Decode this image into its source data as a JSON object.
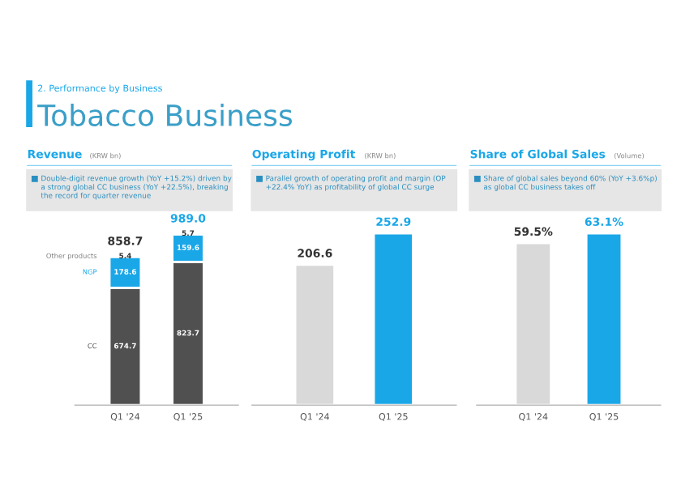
{
  "chart_data": [
    {
      "type": "other",
      "title": "Tobacco Business",
      "subtitle": "2. Performance by Business"
    },
    {
      "type": "bar",
      "title": "Revenue",
      "subtitle": "(KRW bn)",
      "stacked": true,
      "legend": "left",
      "tick_labels": "x",
      "annotations": [
        "Double-digit revenue growth (YoY +15.2%) driven by a strong global CC business (YoY +22.5%), breaking the record for quarter revenue"
      ],
      "categories": [
        "Q1 '24",
        "Q1 '25"
      ],
      "series": [
        {
          "name": "CC",
          "color": "#505050",
          "values": [
            674.7,
            823.7
          ],
          "value_labels": [
            "674.7",
            "823.7"
          ]
        },
        {
          "name": "NGP",
          "color": "#1aa7e8",
          "values": [
            178.6,
            159.6
          ],
          "value_labels": [
            "178.6",
            "159.6"
          ]
        },
        {
          "name": "Other products",
          "color": "#7f7f7f",
          "values": [
            5.4,
            5.7
          ],
          "value_labels": [
            "5.4",
            "5.7"
          ]
        }
      ],
      "totals": [
        "858.7",
        "989.0"
      ]
    },
    {
      "type": "bar",
      "title": "Operating Profit",
      "subtitle": "(KRW bn)",
      "tick_labels": "x",
      "data_labels": true,
      "annotations": [
        "Parallel growth of operating profit and margin (OP +22.4% YoY) as profitability of global CC surge"
      ],
      "categories": [
        "Q1 '24",
        "Q1 '25"
      ],
      "values": [
        206.6,
        252.9
      ],
      "colors": [
        "#d9d9d9",
        "#1aa7e8"
      ]
    },
    {
      "type": "bar",
      "title": "Share of Global Sales",
      "subtitle": "(Volume)",
      "tick_labels": "x",
      "annotations": [
        "Share of global sales beyond 60% (YoY +3.6%p) as global CC business takes off"
      ],
      "categories": [
        "Q1 '24",
        "Q1 '25"
      ],
      "values": [
        59.5,
        63.1
      ],
      "value_labels": [
        "59.5%",
        "63.1%"
      ],
      "colors": [
        "#d9d9d9",
        "#1aa7e8"
      ]
    }
  ]
}
